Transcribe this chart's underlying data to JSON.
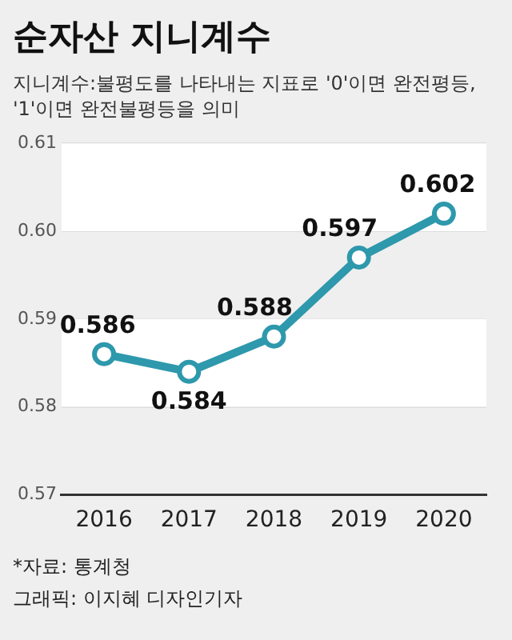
{
  "chart_data": {
    "type": "line",
    "title": "순자산 지니계수",
    "subtitle": "지니계수:불평도를 나타내는 지표로 '0'이면 완전평등, '1'이면 완전불평등을 의미",
    "categories": [
      "2016",
      "2017",
      "2018",
      "2019",
      "2020"
    ],
    "series": [
      {
        "color": "#2e98ac",
        "values": [
          0.586,
          0.584,
          0.588,
          0.597,
          0.602
        ]
      }
    ],
    "ylim": [
      0.57,
      0.61
    ],
    "yticks": [
      0.57,
      0.58,
      0.59,
      {
        "value": 0.6,
        "label": "0.60"
      },
      0.61
    ],
    "grid": "y",
    "marker": "circle",
    "line_style": "solid",
    "data_labels": true,
    "legend": false,
    "annotations": [
      "*자료: 통계청",
      "그래픽: 이지혜 디자인기자"
    ]
  }
}
